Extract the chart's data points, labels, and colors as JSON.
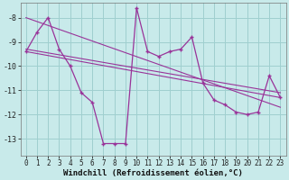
{
  "xlabel": "Windchill (Refroidissement éolien,°C)",
  "background_color": "#c8eaea",
  "grid_color": "#9fcfcf",
  "line_color": "#993399",
  "x_hours": [
    0,
    1,
    2,
    3,
    4,
    5,
    6,
    7,
    8,
    9,
    10,
    11,
    12,
    13,
    14,
    15,
    16,
    17,
    18,
    19,
    20,
    21,
    22,
    23
  ],
  "windchill_series": [
    -9.4,
    -8.6,
    -8.0,
    -9.3,
    -10.0,
    -11.1,
    -11.5,
    -13.2,
    -13.2,
    -13.2,
    -7.6,
    -9.4,
    -9.6,
    -9.4,
    -9.3,
    -8.8,
    -10.7,
    -11.4,
    -11.6,
    -11.9,
    -12.0,
    -11.9,
    -10.4,
    -11.3
  ],
  "trend1_x": [
    0,
    23
  ],
  "trend1_y": [
    -9.4,
    -11.3
  ],
  "trend2_x": [
    0,
    23
  ],
  "trend2_y": [
    -8.0,
    -11.7
  ],
  "trend3_x": [
    0,
    23
  ],
  "trend3_y": [
    -9.3,
    -11.1
  ],
  "ylim": [
    -13.7,
    -7.4
  ],
  "yticks": [
    -8,
    -9,
    -10,
    -11,
    -12,
    -13
  ],
  "xticks": [
    0,
    1,
    2,
    3,
    4,
    5,
    6,
    7,
    8,
    9,
    10,
    11,
    12,
    13,
    14,
    15,
    16,
    17,
    18,
    19,
    20,
    21,
    22,
    23
  ],
  "tick_fontsize": 5.5,
  "ytick_fontsize": 6.0,
  "xlabel_fontsize": 6.5
}
